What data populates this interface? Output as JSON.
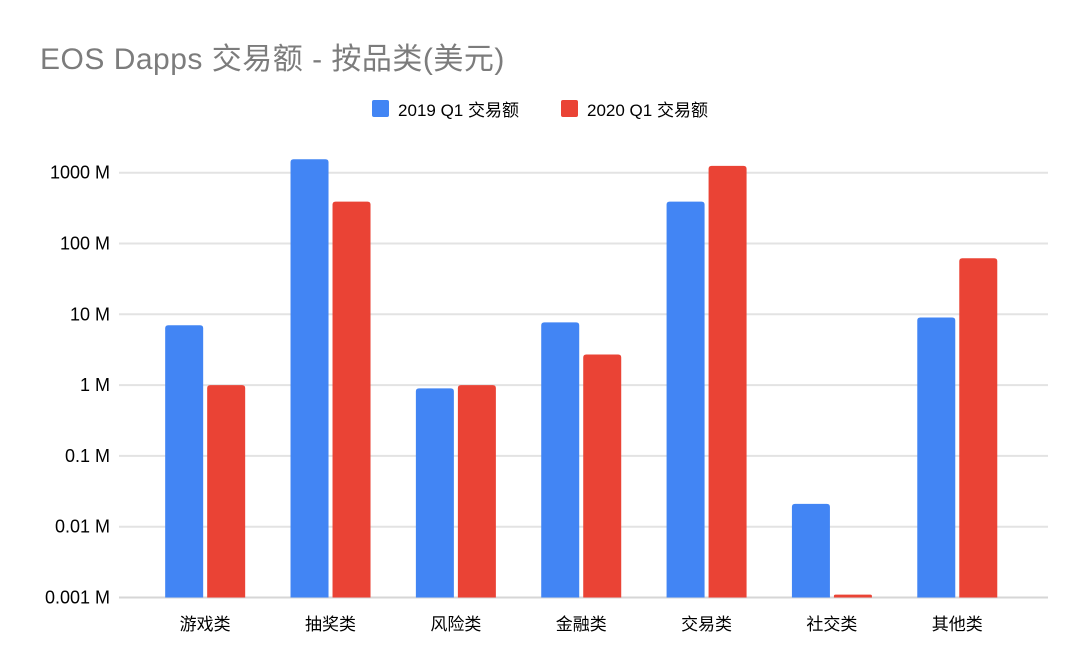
{
  "page": {
    "background": "#ffffff"
  },
  "header": {
    "title": "EOS Dapps 交易额 - 按品类(美元)",
    "title_color": "#7c7c7c"
  },
  "legend": {
    "items": [
      {
        "label": "2019 Q1 交易额",
        "color": "#4285F4"
      },
      {
        "label": "2020 Q1 交易额",
        "color": "#EA4335"
      }
    ]
  },
  "chart_data": {
    "type": "bar",
    "title": "EOS Dapps 交易额 - 按品类(美元)",
    "xlabel": "",
    "ylabel": "",
    "y_scale": "log",
    "y_unit_suffix": "M",
    "ylim_m": [
      0.001,
      2500
    ],
    "grid": true,
    "legend_position": "top-center",
    "categories": [
      "游戏类",
      "抽奖类",
      "风险类",
      "金融类",
      "交易类",
      "社交类",
      "其他类"
    ],
    "series": [
      {
        "name": "2019 Q1 交易额",
        "color": "#4285F4",
        "values_m": [
          7,
          1550,
          0.9,
          7.7,
          390,
          0.021,
          9
        ]
      },
      {
        "name": "2020 Q1 交易额",
        "color": "#EA4335",
        "values_m": [
          1,
          390,
          1.0,
          2.7,
          1250,
          0.0011,
          62
        ]
      }
    ],
    "y_ticks": [
      {
        "value_m": 1000,
        "label": "1000 M"
      },
      {
        "value_m": 100,
        "label": "100 M"
      },
      {
        "value_m": 10,
        "label": "10 M"
      },
      {
        "value_m": 1,
        "label": "1 M"
      },
      {
        "value_m": 0.1,
        "label": "0.1 M"
      },
      {
        "value_m": 0.01,
        "label": "0.01 M"
      },
      {
        "value_m": 0.001,
        "label": "0.001 M"
      }
    ],
    "colors": {
      "gridline": "#e3e3e3",
      "baseline": "#d6d6d6",
      "axis_text": "#000000"
    }
  }
}
